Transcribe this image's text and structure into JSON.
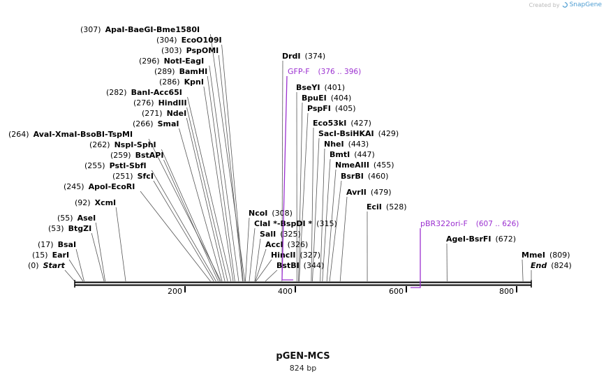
{
  "brand": {
    "prefix": "Created by",
    "name": "SnapGene"
  },
  "map": {
    "name": "pGEN-MCS",
    "length_label": "824 bp",
    "ticks": [
      "200",
      "400",
      "600",
      "800"
    ]
  },
  "sites": [
    {
      "pos": "(307)",
      "names": [
        "ApaI",
        "BaeGI",
        "Bme1580I"
      ]
    },
    {
      "pos": "(304)",
      "names": [
        "EcoO109I"
      ]
    },
    {
      "pos": "(303)",
      "names": [
        "PspOMI"
      ]
    },
    {
      "pos": "(296)",
      "names": [
        "NotI",
        "EagI"
      ]
    },
    {
      "pos": "(289)",
      "names": [
        "BamHI"
      ]
    },
    {
      "pos": "(286)",
      "names": [
        "KpnI"
      ]
    },
    {
      "pos": "(282)",
      "names": [
        "BanI",
        "Acc65I"
      ]
    },
    {
      "pos": "(276)",
      "names": [
        "HindIII"
      ]
    },
    {
      "pos": "(271)",
      "names": [
        "NdeI"
      ]
    },
    {
      "pos": "(266)",
      "names": [
        "SmaI"
      ]
    },
    {
      "pos": "(264)",
      "names": [
        "AvaI",
        "XmaI",
        "BsoBI",
        "TspMI"
      ]
    },
    {
      "pos": "(262)",
      "names": [
        "NspI",
        "SphI"
      ]
    },
    {
      "pos": "(259)",
      "names": [
        "BstAPI"
      ]
    },
    {
      "pos": "(255)",
      "names": [
        "PstI",
        "SbfI"
      ]
    },
    {
      "pos": "(251)",
      "names": [
        "SfcI"
      ]
    },
    {
      "pos": "(245)",
      "names": [
        "ApoI",
        "EcoRI"
      ]
    },
    {
      "pos": "(92)",
      "names": [
        "XcmI"
      ]
    },
    {
      "pos": "(55)",
      "names": [
        "AseI"
      ]
    },
    {
      "pos": "(53)",
      "names": [
        "BtgZI"
      ]
    },
    {
      "pos": "(17)",
      "names": [
        "BsaI"
      ]
    },
    {
      "pos": "(15)",
      "names": [
        "EarI"
      ]
    },
    {
      "pos": "(0)",
      "names": [
        "Start"
      ]
    },
    {
      "pos": "(374)",
      "names": [
        "DrdI"
      ]
    },
    {
      "pos": "(401)",
      "names": [
        "BseYI"
      ]
    },
    {
      "pos": "(404)",
      "names": [
        "BpuEI"
      ]
    },
    {
      "pos": "(405)",
      "names": [
        "PspFI"
      ]
    },
    {
      "pos": "(427)",
      "names": [
        "Eco53kI"
      ]
    },
    {
      "pos": "(429)",
      "names": [
        "SacI",
        "BsiHKAI"
      ]
    },
    {
      "pos": "(443)",
      "names": [
        "NheI"
      ]
    },
    {
      "pos": "(447)",
      "names": [
        "BmtI"
      ]
    },
    {
      "pos": "(455)",
      "names": [
        "NmeAIII"
      ]
    },
    {
      "pos": "(460)",
      "names": [
        "BsrBI"
      ]
    },
    {
      "pos": "(479)",
      "names": [
        "AvrII"
      ]
    },
    {
      "pos": "(528)",
      "names": [
        "EciI"
      ]
    },
    {
      "pos": "(308)",
      "names": [
        "NcoI"
      ]
    },
    {
      "pos": "(315)",
      "names": [
        "ClaI *",
        "BspDI *"
      ]
    },
    {
      "pos": "(325)",
      "names": [
        "SalI"
      ]
    },
    {
      "pos": "(326)",
      "names": [
        "AccI"
      ]
    },
    {
      "pos": "(327)",
      "names": [
        "HincII"
      ]
    },
    {
      "pos": "(344)",
      "names": [
        "BstBI"
      ]
    },
    {
      "pos": "(672)",
      "names": [
        "AgeI",
        "BsrFI"
      ]
    },
    {
      "pos": "(809)",
      "names": [
        "MmeI"
      ]
    },
    {
      "pos": "(824)",
      "names": [
        "End"
      ]
    }
  ],
  "primers": [
    {
      "name": "GFP-F",
      "range": "(376 .. 396)"
    },
    {
      "name": "pBR322ori-F",
      "range": "(607 .. 626)"
    }
  ],
  "colors": {
    "primer": "#9b30d0",
    "text": "#000000",
    "backbone": "#000000",
    "line": "#555555"
  }
}
